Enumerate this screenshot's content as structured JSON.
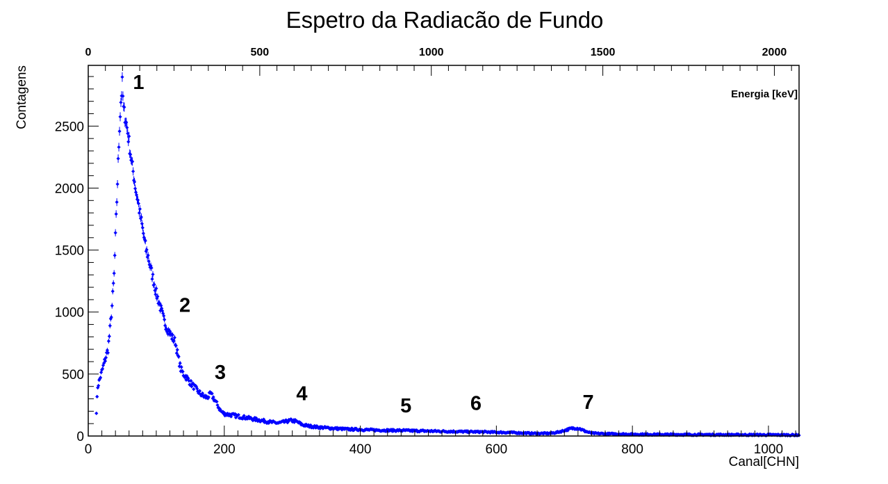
{
  "chart_data": {
    "type": "scatter",
    "title": "Espetro da Radiacão de Fundo",
    "xlabel": "Canal[CHN]",
    "ylabel": "Contagens",
    "top_axis_label": "Energia [keV]",
    "xlim": [
      0,
      1045
    ],
    "ylim": [
      0,
      2990
    ],
    "top_xlim": [
      0,
      2072
    ],
    "x_ticks": [
      "0",
      "200",
      "400",
      "600",
      "800",
      "1000"
    ],
    "y_ticks": [
      "0",
      "500",
      "1000",
      "1500",
      "2000",
      "2500"
    ],
    "top_x_ticks": [
      "0",
      "500",
      "1000",
      "1500",
      "2000"
    ],
    "grid": false,
    "marker_color": "#0000ff",
    "series_profile": [
      [
        12,
        200
      ],
      [
        14,
        400
      ],
      [
        17,
        460
      ],
      [
        20,
        520
      ],
      [
        23,
        580
      ],
      [
        26,
        640
      ],
      [
        29,
        700
      ],
      [
        32,
        860
      ],
      [
        35,
        1050
      ],
      [
        38,
        1300
      ],
      [
        40,
        1600
      ],
      [
        42,
        1900
      ],
      [
        44,
        2200
      ],
      [
        46,
        2500
      ],
      [
        48,
        2700
      ],
      [
        50,
        2840
      ],
      [
        52,
        2630
      ],
      [
        55,
        2560
      ],
      [
        58,
        2450
      ],
      [
        61,
        2330
      ],
      [
        64,
        2200
      ],
      [
        67,
        2100
      ],
      [
        70,
        1980
      ],
      [
        73,
        1900
      ],
      [
        76,
        1790
      ],
      [
        79,
        1700
      ],
      [
        82,
        1600
      ],
      [
        85,
        1500
      ],
      [
        88,
        1450
      ],
      [
        91,
        1370
      ],
      [
        94,
        1300
      ],
      [
        97,
        1230
      ],
      [
        100,
        1150
      ],
      [
        104,
        1080
      ],
      [
        108,
        1000
      ],
      [
        112,
        920
      ],
      [
        116,
        870
      ],
      [
        120,
        830
      ],
      [
        124,
        790
      ],
      [
        128,
        760
      ],
      [
        132,
        640
      ],
      [
        136,
        540
      ],
      [
        140,
        500
      ],
      [
        145,
        470
      ],
      [
        150,
        430
      ],
      [
        155,
        400
      ],
      [
        160,
        370
      ],
      [
        165,
        340
      ],
      [
        170,
        320
      ],
      [
        175,
        310
      ],
      [
        180,
        340
      ],
      [
        185,
        300
      ],
      [
        190,
        250
      ],
      [
        195,
        200
      ],
      [
        200,
        180
      ],
      [
        210,
        170
      ],
      [
        220,
        160
      ],
      [
        230,
        150
      ],
      [
        240,
        140
      ],
      [
        250,
        130
      ],
      [
        260,
        120
      ],
      [
        270,
        110
      ],
      [
        280,
        105
      ],
      [
        290,
        115
      ],
      [
        297,
        125
      ],
      [
        305,
        120
      ],
      [
        315,
        90
      ],
      [
        325,
        80
      ],
      [
        340,
        70
      ],
      [
        360,
        62
      ],
      [
        380,
        55
      ],
      [
        400,
        52
      ],
      [
        420,
        48
      ],
      [
        440,
        46
      ],
      [
        460,
        45
      ],
      [
        480,
        42
      ],
      [
        500,
        40
      ],
      [
        520,
        38
      ],
      [
        540,
        36
      ],
      [
        560,
        34
      ],
      [
        580,
        33
      ],
      [
        600,
        30
      ],
      [
        620,
        28
      ],
      [
        640,
        24
      ],
      [
        660,
        20
      ],
      [
        680,
        22
      ],
      [
        690,
        30
      ],
      [
        700,
        45
      ],
      [
        710,
        60
      ],
      [
        716,
        65
      ],
      [
        722,
        60
      ],
      [
        730,
        40
      ],
      [
        740,
        22
      ],
      [
        760,
        18
      ],
      [
        780,
        16
      ],
      [
        800,
        14
      ],
      [
        850,
        12
      ],
      [
        900,
        11
      ],
      [
        950,
        10
      ],
      [
        1000,
        9
      ],
      [
        1045,
        8
      ]
    ],
    "annotations": [
      {
        "text": "1",
        "x": 74,
        "y": 2800
      },
      {
        "text": "2",
        "x": 142,
        "y": 1000
      },
      {
        "text": "3",
        "x": 194,
        "y": 460
      },
      {
        "text": "4",
        "x": 314,
        "y": 290
      },
      {
        "text": "5",
        "x": 467,
        "y": 190
      },
      {
        "text": "6",
        "x": 570,
        "y": 210
      },
      {
        "text": "7",
        "x": 735,
        "y": 220
      }
    ]
  }
}
